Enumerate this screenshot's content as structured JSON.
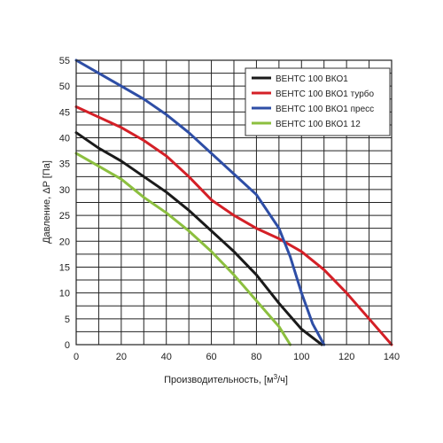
{
  "chart_data": {
    "type": "line",
    "title": "",
    "xlabel": "Производительность, [м",
    "xlabel_sup": "3",
    "xlabel_end": "/ч]",
    "ylabel": "Давление, ΔP [Па]",
    "xlim": [
      0,
      140
    ],
    "ylim": [
      0,
      55
    ],
    "x_ticks": [
      "0",
      "20",
      "40",
      "60",
      "80",
      "100",
      "120",
      "140"
    ],
    "y_ticks": [
      "0",
      "5",
      "10",
      "15",
      "20",
      "25",
      "30",
      "35",
      "40",
      "45",
      "50",
      "55"
    ],
    "grid": true,
    "legend_position": "top-right",
    "series": [
      {
        "name": "ВЕНТС 100 ВКО1",
        "color": "#1a1a1a",
        "points": [
          [
            0,
            41
          ],
          [
            10,
            38
          ],
          [
            20,
            35.5
          ],
          [
            30,
            32.5
          ],
          [
            40,
            29.5
          ],
          [
            50,
            26
          ],
          [
            60,
            22
          ],
          [
            70,
            18
          ],
          [
            80,
            13.5
          ],
          [
            90,
            8
          ],
          [
            100,
            3
          ],
          [
            109,
            0
          ]
        ]
      },
      {
        "name": "ВЕНТС 100 ВКО1 турбо",
        "color": "#d42027",
        "points": [
          [
            0,
            46
          ],
          [
            10,
            44
          ],
          [
            20,
            42
          ],
          [
            30,
            39.5
          ],
          [
            40,
            36.5
          ],
          [
            50,
            32.5
          ],
          [
            60,
            28
          ],
          [
            70,
            25
          ],
          [
            80,
            22.5
          ],
          [
            90,
            20.5
          ],
          [
            100,
            18
          ],
          [
            110,
            14.5
          ],
          [
            120,
            10
          ],
          [
            130,
            5
          ],
          [
            140,
            0
          ]
        ]
      },
      {
        "name": "ВЕНТС 100 ВКО1 пресс",
        "color": "#2e4ea6",
        "points": [
          [
            0,
            55
          ],
          [
            10,
            52.5
          ],
          [
            20,
            50
          ],
          [
            30,
            47.5
          ],
          [
            40,
            44.5
          ],
          [
            50,
            41
          ],
          [
            60,
            37
          ],
          [
            70,
            33
          ],
          [
            80,
            29
          ],
          [
            90,
            22.5
          ],
          [
            95,
            17
          ],
          [
            100,
            10
          ],
          [
            105,
            4
          ],
          [
            110,
            0
          ]
        ]
      },
      {
        "name": "ВЕНТС 100 ВКО1 12",
        "color": "#8cbf3f",
        "points": [
          [
            0,
            37
          ],
          [
            10,
            34.5
          ],
          [
            20,
            32
          ],
          [
            30,
            28.5
          ],
          [
            40,
            25.5
          ],
          [
            50,
            22
          ],
          [
            60,
            18
          ],
          [
            70,
            13.5
          ],
          [
            80,
            8.5
          ],
          [
            90,
            3.5
          ],
          [
            95,
            0
          ]
        ]
      }
    ]
  }
}
